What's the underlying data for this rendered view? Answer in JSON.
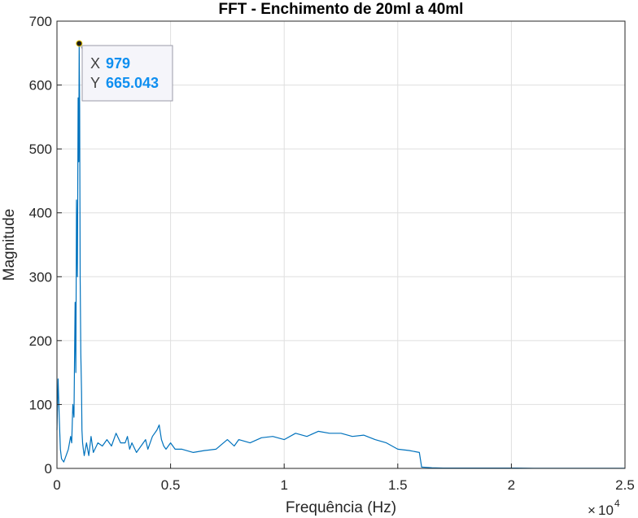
{
  "chart_data": {
    "type": "line",
    "title": "FFT - Enchimento de 20ml a 40ml",
    "xlabel": "Frequência (Hz)",
    "ylabel": "Magnitude",
    "x_multiplier": "10",
    "x_multiplier_exponent": "4",
    "xlim": [
      0,
      25000
    ],
    "ylim": [
      0,
      700
    ],
    "x_ticks": [
      0,
      5000,
      10000,
      15000,
      20000,
      25000
    ],
    "x_tick_labels": [
      "0",
      "0.5",
      "1",
      "1.5",
      "2",
      "2.5"
    ],
    "y_ticks": [
      0,
      100,
      200,
      300,
      400,
      500,
      600,
      700
    ],
    "y_tick_labels": [
      "0",
      "100",
      "200",
      "300",
      "400",
      "500",
      "600",
      "700"
    ],
    "grid": true,
    "series": [
      {
        "color": "#0072bd",
        "x": [
          0,
          50,
          100,
          150,
          200,
          300,
          400,
          500,
          600,
          650,
          700,
          750,
          800,
          830,
          860,
          900,
          930,
          960,
          979,
          1000,
          1020,
          1050,
          1080,
          1100,
          1130,
          1160,
          1200,
          1300,
          1400,
          1500,
          1600,
          1800,
          2000,
          2200,
          2400,
          2600,
          2800,
          3000,
          3100,
          3200,
          3300,
          3500,
          3700,
          3900,
          4000,
          4200,
          4400,
          4500,
          4600,
          4700,
          4800,
          5000,
          5200,
          5500,
          6000,
          6500,
          7000,
          7500,
          7800,
          8000,
          8500,
          9000,
          9500,
          10000,
          10500,
          11000,
          11500,
          12000,
          12500,
          13000,
          13500,
          14000,
          14500,
          15000,
          15500,
          15950,
          16050,
          16500,
          17000,
          18000,
          19000,
          20000,
          21000,
          22000,
          23000,
          24000,
          25000
        ],
        "y": [
          60,
          140,
          80,
          30,
          15,
          10,
          20,
          30,
          50,
          40,
          100,
          80,
          260,
          150,
          420,
          300,
          580,
          480,
          665.043,
          560,
          300,
          180,
          120,
          60,
          40,
          30,
          20,
          40,
          20,
          50,
          25,
          40,
          35,
          45,
          35,
          55,
          40,
          40,
          50,
          30,
          40,
          25,
          35,
          45,
          30,
          50,
          60,
          68,
          45,
          35,
          30,
          40,
          30,
          30,
          25,
          28,
          30,
          45,
          35,
          45,
          40,
          48,
          50,
          45,
          55,
          50,
          58,
          55,
          55,
          50,
          52,
          45,
          40,
          30,
          28,
          25,
          2,
          1,
          0.5,
          0.5,
          0.5,
          0.5,
          0.3,
          0.3,
          0.3,
          0.3,
          0.3
        ]
      }
    ],
    "datatip": {
      "x_key": "X",
      "x_value": "979",
      "y_key": "Y",
      "y_value": "665.043",
      "point_x": 979,
      "point_y": 665.043
    }
  }
}
